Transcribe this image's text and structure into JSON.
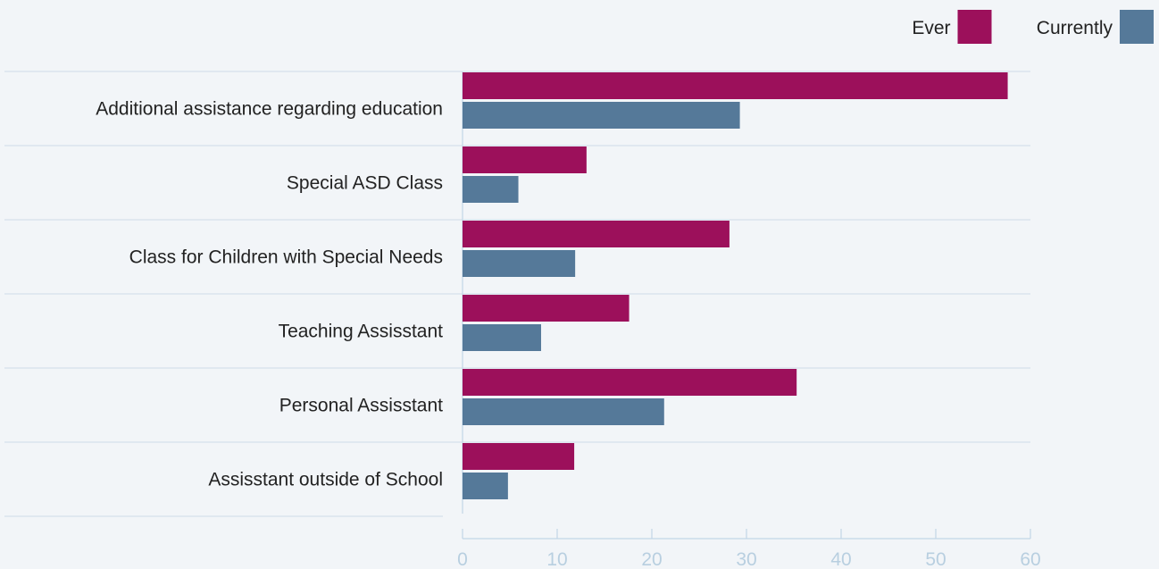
{
  "chart_data": {
    "type": "bar",
    "orientation": "horizontal",
    "categories": [
      "Additional assistance regarding education",
      "Special ASD Class",
      "Class for Children with Special Needs",
      "Teaching Assisstant",
      "Personal Assisstant",
      "Assisstant outside of School"
    ],
    "series": [
      {
        "name": "Ever",
        "color": "#9c105b",
        "values": [
          57.6,
          13.1,
          28.2,
          17.6,
          35.3,
          11.8
        ]
      },
      {
        "name": "Currently",
        "color": "#557999",
        "values": [
          29.3,
          5.9,
          11.9,
          8.3,
          21.3,
          4.8
        ]
      }
    ],
    "xlim": [
      0,
      60
    ],
    "xticks": [
      0,
      10,
      20,
      30,
      40,
      50,
      60
    ],
    "grid": "horizontal separators between categories",
    "legend": "top-right",
    "title": "",
    "xlabel": "",
    "ylabel": ""
  }
}
